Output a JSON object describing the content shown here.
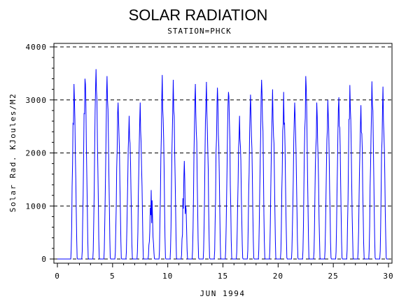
{
  "chart_data": {
    "type": "line",
    "title": "SOLAR RADIATION",
    "subtitle": "STATION=PHCK",
    "xlabel": "JUN 1994",
    "ylabel": "Solar Rad. KJoules/M2",
    "xlim": [
      0,
      30
    ],
    "ylim": [
      0,
      4000
    ],
    "x_ticks": [
      0,
      5,
      10,
      15,
      20,
      25,
      30
    ],
    "y_ticks": [
      0,
      1000,
      2000,
      3000,
      4000
    ],
    "grid": "horizontal dashed",
    "series": [
      {
        "color": "#0000ff",
        "daily_peaks": [
          {
            "day": 1,
            "peak": 3300
          },
          {
            "day": 2,
            "peak": 3400
          },
          {
            "day": 3,
            "peak": 3580
          },
          {
            "day": 4,
            "peak": 3450
          },
          {
            "day": 5,
            "peak": 2950
          },
          {
            "day": 6,
            "peak": 2700
          },
          {
            "day": 7,
            "peak": 2950
          },
          {
            "day": 8,
            "peak": 1300
          },
          {
            "day": 9,
            "peak": 3470
          },
          {
            "day": 10,
            "peak": 3380
          },
          {
            "day": 11,
            "peak": 1850
          },
          {
            "day": 12,
            "peak": 3300
          },
          {
            "day": 13,
            "peak": 3340
          },
          {
            "day": 14,
            "peak": 3230
          },
          {
            "day": 15,
            "peak": 3150
          },
          {
            "day": 16,
            "peak": 2700
          },
          {
            "day": 17,
            "peak": 3100
          },
          {
            "day": 18,
            "peak": 3380
          },
          {
            "day": 19,
            "peak": 3200
          },
          {
            "day": 20,
            "peak": 3150
          },
          {
            "day": 21,
            "peak": 2950
          },
          {
            "day": 22,
            "peak": 3450
          },
          {
            "day": 23,
            "peak": 2950
          },
          {
            "day": 24,
            "peak": 3000
          },
          {
            "day": 25,
            "peak": 3050
          },
          {
            "day": 26,
            "peak": 3280
          },
          {
            "day": 27,
            "peak": 2900
          },
          {
            "day": 28,
            "peak": 3350
          },
          {
            "day": 29,
            "peak": 3250
          }
        ]
      }
    ]
  }
}
